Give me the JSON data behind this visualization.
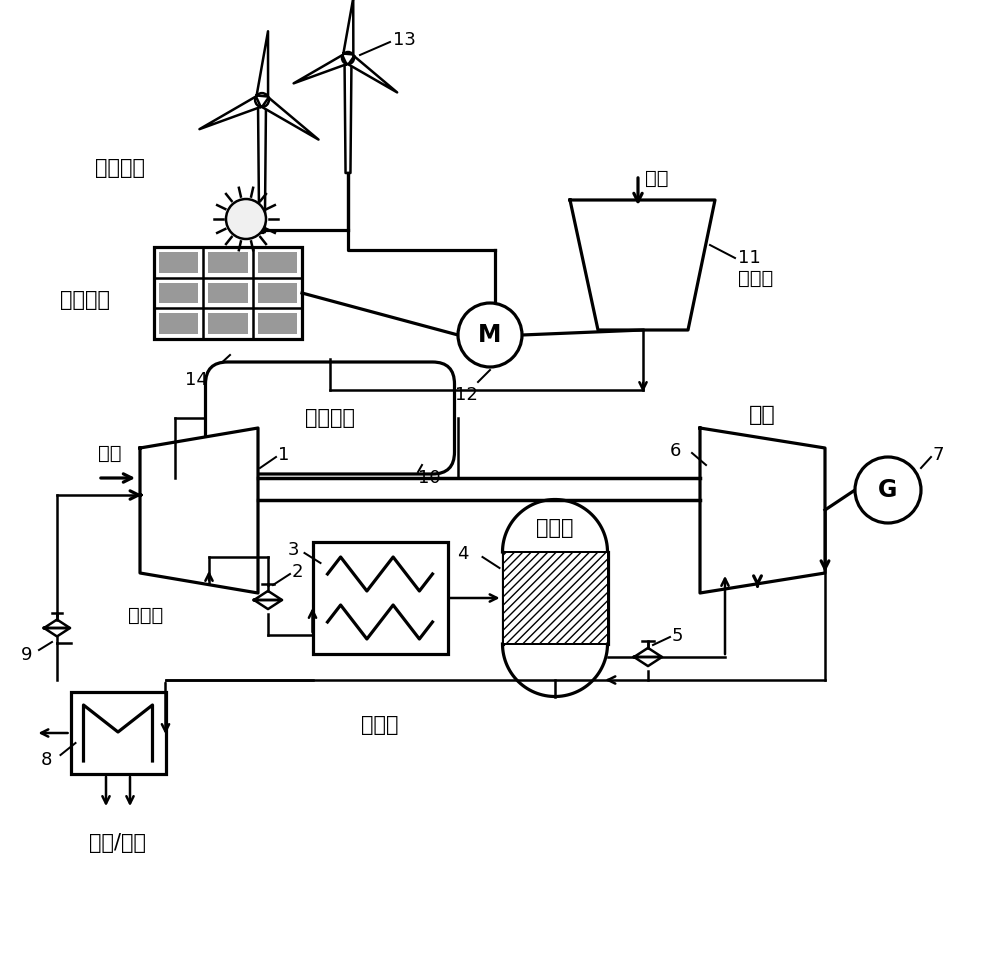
{
  "bg_color": "#ffffff",
  "line_color": "#000000",
  "lw": 1.8,
  "lw2": 2.5,
  "fs": 14,
  "fsn": 13,
  "labels": {
    "wind_power": "风力发电",
    "solar_power": "光伏发电",
    "air_top": "空气",
    "air_left": "空气",
    "compressor_top": "压缩机",
    "compressor_left": "压缩机",
    "turbine": "透平",
    "storage": "储气裃置",
    "reactor": "反应堆",
    "recuperator": "回热器",
    "heat_cold": "供热/制冷"
  }
}
